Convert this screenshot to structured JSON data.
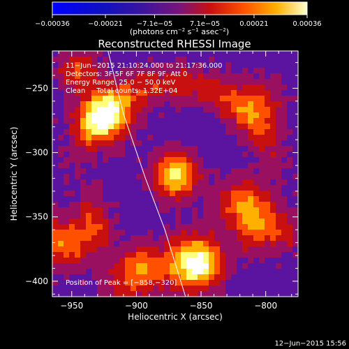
{
  "chart_data": {
    "type": "heatmap",
    "title": "Reconstructed RHESSI Image",
    "xlabel": "Heliocentric X (arcsec)",
    "ylabel": "Heliocentric Y (arcsec)",
    "xlim": [
      -965,
      -775
    ],
    "ylim": [
      -412,
      -221
    ],
    "x_ticks": [
      -950,
      -900,
      -850,
      -800
    ],
    "y_ticks": [
      -250,
      -300,
      -350,
      -400
    ],
    "x_tick_labels": [
      "−950",
      "−900",
      "−850",
      "−800"
    ],
    "y_tick_labels": [
      "−250",
      "−300",
      "−350",
      "−400"
    ],
    "colorbar": {
      "range": [
        -0.00036,
        0.00036
      ],
      "ticks": [
        -0.00036,
        -0.00021,
        -7.1e-05,
        7.1e-05,
        0.00021,
        0.00036
      ],
      "tick_labels": [
        "−0.00036",
        "−0.00021",
        "−7.1e−05",
        "7.1e−05",
        "0.00021",
        "0.00036"
      ],
      "unit_main": "(photons cm",
      "unit_exp1": "−2",
      "unit_mid": " s",
      "unit_exp2": "−1",
      "unit_mid2": " asec",
      "unit_exp3": "−2",
      "unit_end": ")"
    },
    "colors": [
      "#0000ff",
      "#2e1070",
      "#45127a",
      "#5a14a0",
      "#9a1060",
      "#c81010",
      "#ff5000",
      "#ffb000",
      "#ffff80",
      "#ffffff"
    ],
    "blobs": [
      {
        "x": -925,
        "y": -272,
        "amp": 0.00036,
        "sigma": 14
      },
      {
        "x": -870,
        "y": -318,
        "amp": 0.00036,
        "sigma": 12
      },
      {
        "x": -858,
        "y": -385,
        "amp": 0.00034,
        "sigma": 15
      },
      {
        "x": -955,
        "y": -370,
        "amp": 0.00024,
        "sigma": 14
      },
      {
        "x": -820,
        "y": -340,
        "amp": 0.00022,
        "sigma": 14
      },
      {
        "x": -805,
        "y": -262,
        "amp": 0.00016,
        "sigma": 14
      },
      {
        "x": -790,
        "y": -360,
        "amp": 0.00016,
        "sigma": 12
      },
      {
        "x": -945,
        "y": -235,
        "amp": 0.00018,
        "sigma": 12
      },
      {
        "x": -905,
        "y": -400,
        "amp": 0.00018,
        "sigma": 14
      }
    ],
    "limb_line": [
      [
        -922,
        -221
      ],
      [
        -910,
        -270
      ],
      [
        -893,
        -320
      ],
      [
        -878,
        -360
      ],
      [
        -862,
        -412
      ]
    ],
    "annotations": {
      "time_range": "11−Jun−2015 21:10:24.000 to 21:17:36.000",
      "detectors": "Detectors: 3F 5F 6F 7F 8F 9F, Att 0",
      "energy": "Energy Range: 25.0 − 50.0 keV",
      "clean": "Clean     Total counts: 1.32E+04",
      "peak": "Position of Peak = [−858,−320]"
    },
    "timestamp": "12−Jun−2015 15:56"
  }
}
